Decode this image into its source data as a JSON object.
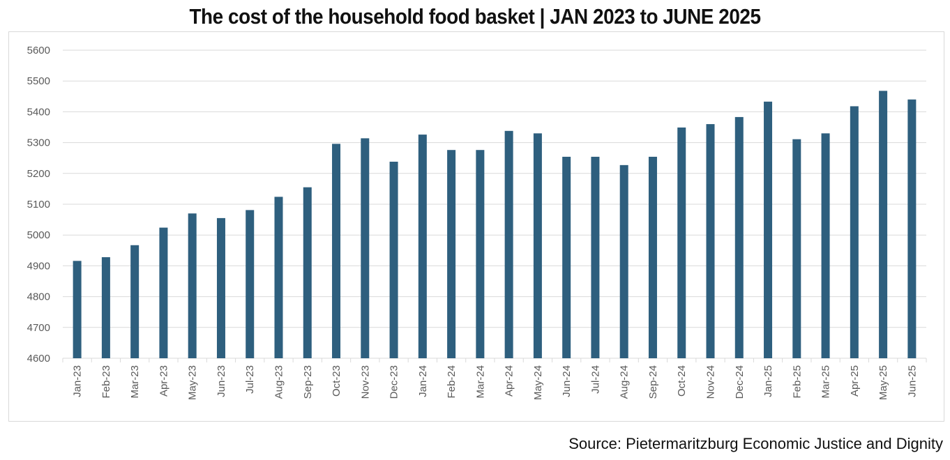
{
  "title": "The cost of the household food basket | JAN 2023 to JUNE  2025",
  "source": "Source: Pietermaritzburg Economic Justice and Dignity",
  "colors": {
    "bar": "#2e5f7e",
    "grid": "#d9d9d9",
    "tick_text": "#595959"
  },
  "chart_data": {
    "type": "bar",
    "title": "The cost of the household food basket | JAN 2023 to JUNE  2025",
    "xlabel": "",
    "ylabel": "",
    "ylim": [
      4600,
      5600
    ],
    "yticks": [
      4600,
      4700,
      4800,
      4900,
      5000,
      5100,
      5200,
      5300,
      5400,
      5500,
      5600
    ],
    "grid": true,
    "legend": "none",
    "categories": [
      "Jan-23",
      "Feb-23",
      "Mar-23",
      "Apr-23",
      "May-23",
      "Jun-23",
      "Jul-23",
      "Aug-23",
      "Sep-23",
      "Oct-23",
      "Nov-23",
      "Dec-23",
      "Jan-24",
      "Feb-24",
      "Mar-24",
      "Apr-24",
      "May-24",
      "Jun-24",
      "Jul-24",
      "Aug-24",
      "Sep-24",
      "Oct-24",
      "Nov-24",
      "Dec-24",
      "Jan-25",
      "Feb-25",
      "Mar-25",
      "Apr-25",
      "May-25",
      "Jun-25"
    ],
    "values": [
      4916,
      4928,
      4967,
      5024,
      5070,
      5055,
      5081,
      5124,
      5155,
      5296,
      5314,
      5238,
      5326,
      5276,
      5276,
      5338,
      5330,
      5254,
      5254,
      5227,
      5254,
      5349,
      5360,
      5383,
      5433,
      5311,
      5330,
      5418,
      5468,
      5440
    ]
  }
}
